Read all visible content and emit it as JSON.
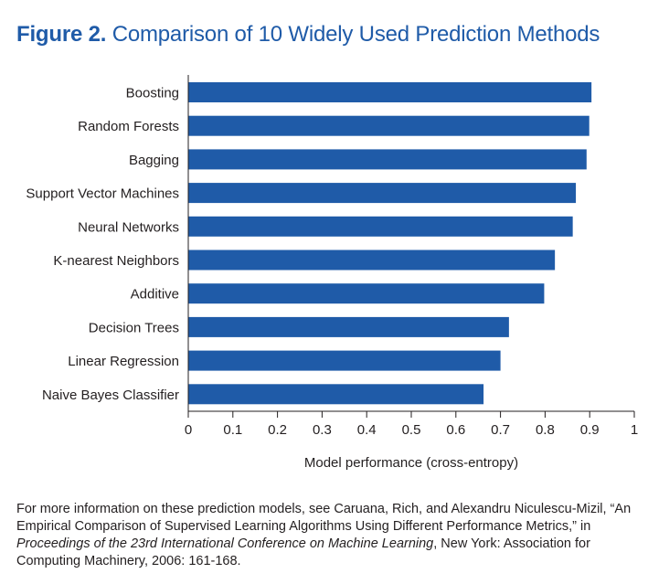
{
  "header": {
    "figure_label": "Figure 2.",
    "title": "Comparison of 10 Widely Used Prediction Methods"
  },
  "chart_data": {
    "type": "bar",
    "orientation": "horizontal",
    "categories": [
      "Boosting",
      "Random Forests",
      "Bagging",
      "Support Vector Machines",
      "Neural Networks",
      "K-nearest Neighbors",
      "Additive",
      "Decision Trees",
      "Linear Regression",
      "Naive Bayes Classifier"
    ],
    "values": [
      0.904,
      0.899,
      0.893,
      0.869,
      0.862,
      0.822,
      0.798,
      0.719,
      0.7,
      0.662
    ],
    "xlabel": "Model performance (cross-entropy)",
    "ylabel": "",
    "xlim": [
      0,
      1
    ],
    "xticks": [
      "0",
      "0.1",
      "0.2",
      "0.3",
      "0.4",
      "0.5",
      "0.6",
      "0.7",
      "0.8",
      "0.9",
      "1"
    ],
    "grid": false,
    "bar_color": "#1f5ba8"
  },
  "footnote": {
    "text_1": "For more information on these prediction models, see Caruana, Rich, and Alexandru Niculescu-Mizil, “An Empirical Comparison of Supervised Learning Algorithms Using Different Performance Metrics,” in ",
    "italic": "Proceedings of the 23rd International Conference on Machine Learning",
    "text_2": ", New York: Association for Computing Machinery, 2006: 161-168."
  }
}
